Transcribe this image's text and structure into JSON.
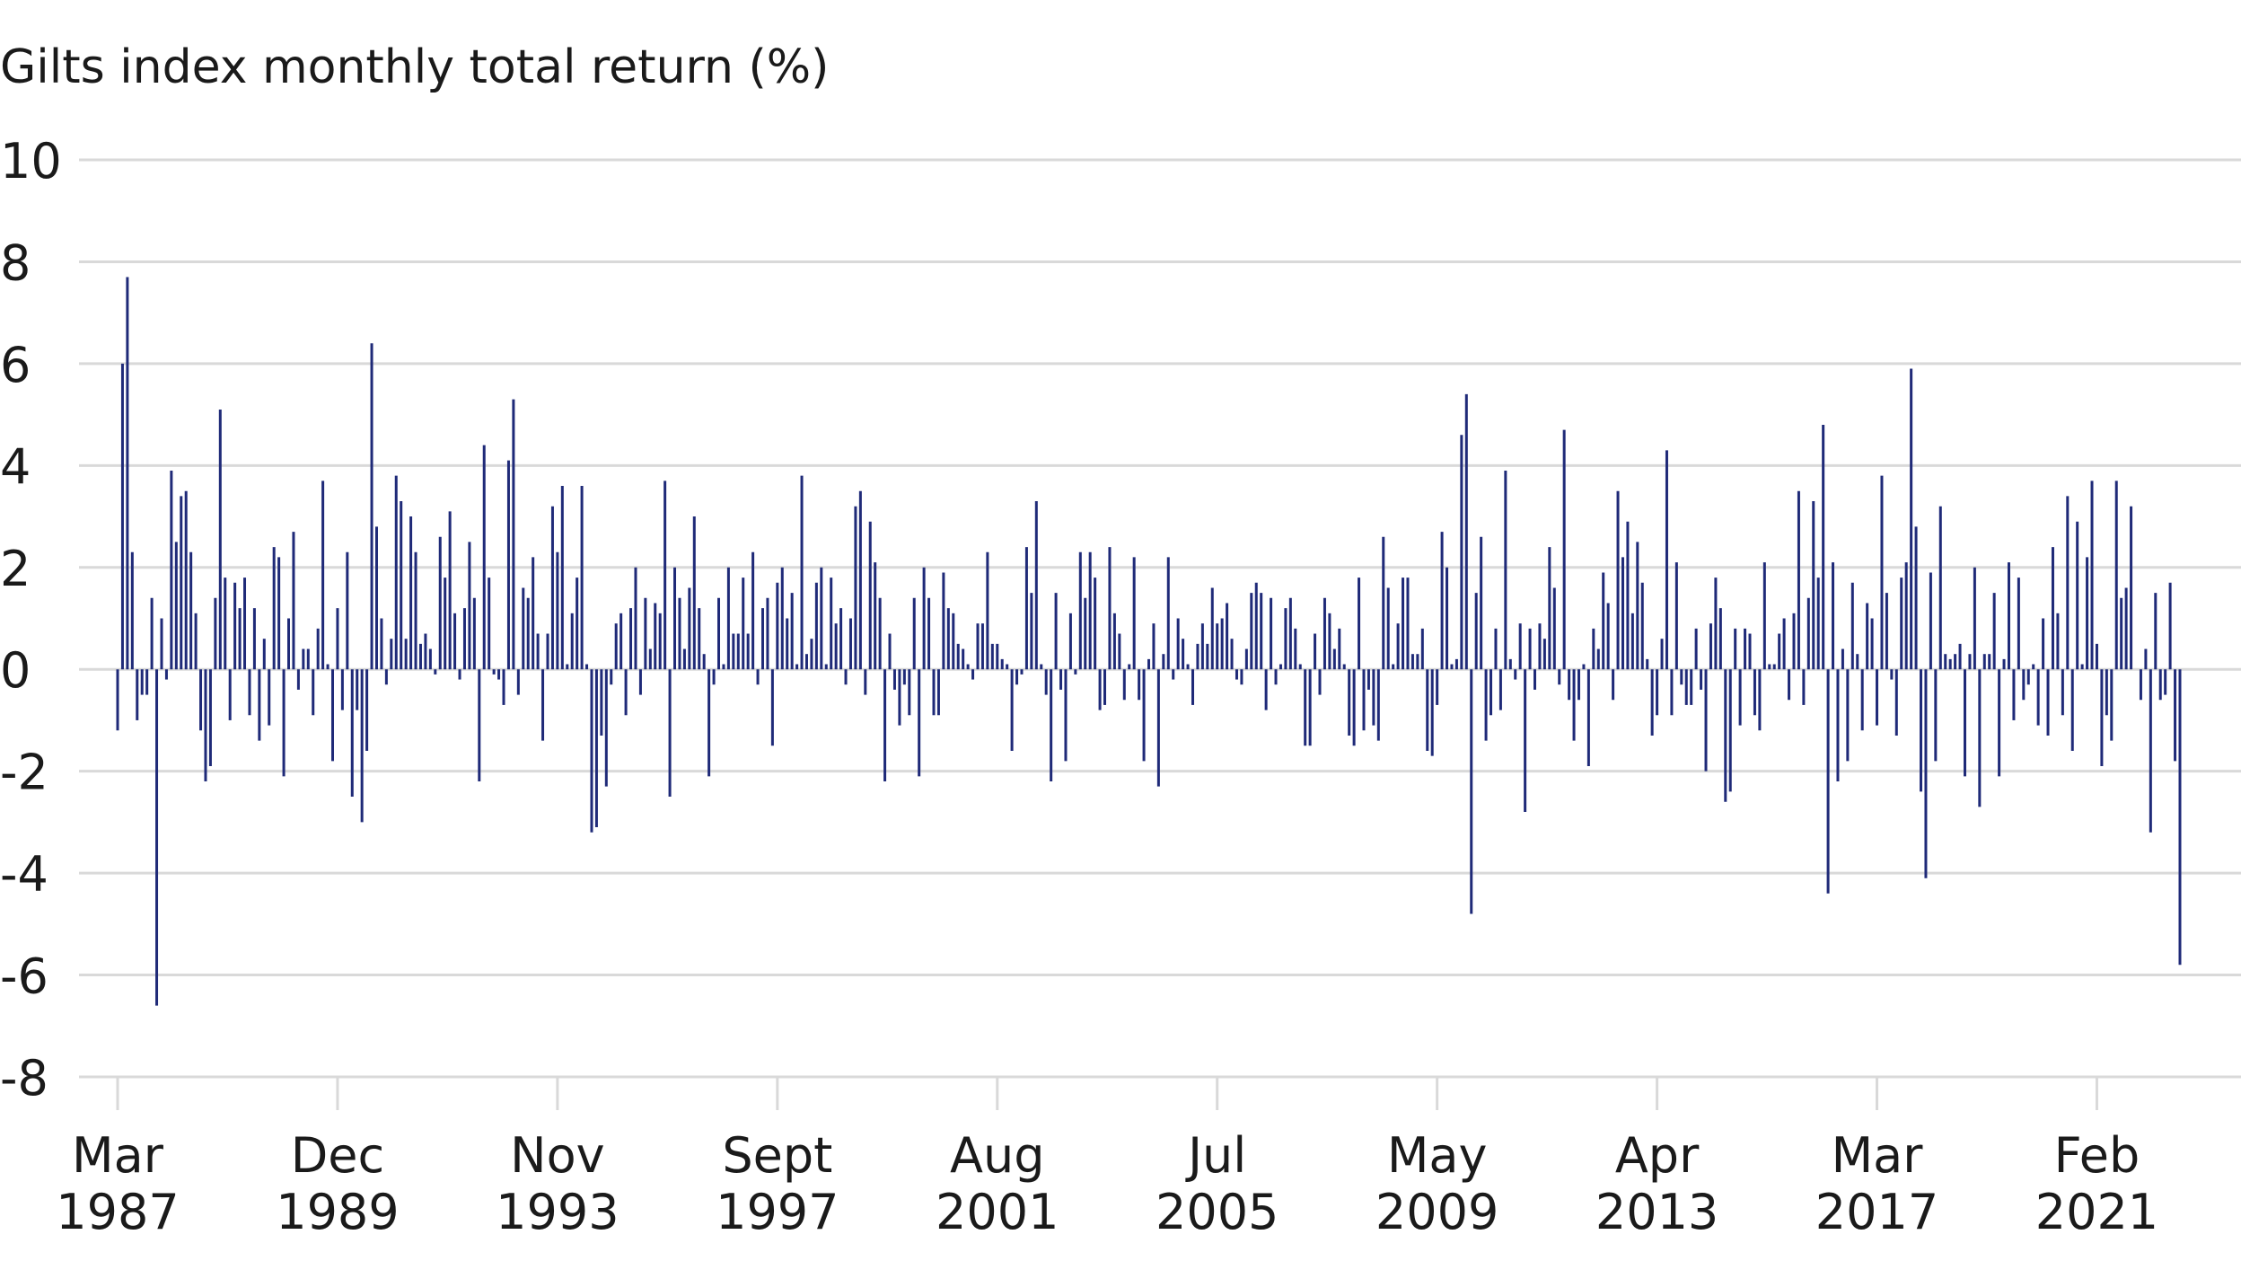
{
  "chart_data": {
    "type": "bar",
    "title": "Gilts index monthly total return (%)",
    "xlabel": "",
    "ylabel": "",
    "ylim": [
      -8,
      10
    ],
    "yticks": [
      10,
      8,
      6,
      4,
      2,
      0,
      -2,
      -4,
      -6,
      -8
    ],
    "grid": "horizontal",
    "bar_color": "#1f2a78",
    "gridline_color": "#d9d9d9",
    "x_ticks": [
      {
        "line1": "Mar",
        "line2": "1987",
        "index": 0
      },
      {
        "line1": "Dec",
        "line2": "1989",
        "index": 45
      },
      {
        "line1": "Nov",
        "line2": "1993",
        "index": 90
      },
      {
        "line1": "Sept",
        "line2": "1997",
        "index": 135
      },
      {
        "line1": "Aug",
        "line2": "2001",
        "index": 180
      },
      {
        "line1": "Jul",
        "line2": "2005",
        "index": 225
      },
      {
        "line1": "May",
        "line2": "2009",
        "index": 270
      },
      {
        "line1": "Apr",
        "line2": "2013",
        "index": 315
      },
      {
        "line1": "Mar",
        "line2": "2017",
        "index": 360
      },
      {
        "line1": "Feb",
        "line2": "2021",
        "index": 405
      }
    ],
    "values": [
      -1.2,
      6.0,
      7.7,
      2.3,
      -1.0,
      -0.5,
      -0.5,
      1.4,
      -6.6,
      1.0,
      -0.2,
      3.9,
      2.5,
      3.4,
      3.5,
      2.3,
      1.1,
      -1.2,
      -2.2,
      -1.9,
      1.4,
      5.1,
      1.8,
      -1.0,
      1.7,
      1.2,
      1.8,
      -0.9,
      1.2,
      -1.4,
      0.6,
      -1.1,
      2.4,
      2.2,
      -2.1,
      1.0,
      2.7,
      -0.4,
      0.4,
      0.4,
      -0.9,
      0.8,
      3.7,
      0.1,
      -1.8,
      1.2,
      -0.8,
      2.3,
      -2.5,
      -0.8,
      -3.0,
      -1.6,
      6.4,
      2.8,
      1.0,
      -0.3,
      0.6,
      3.8,
      3.3,
      0.6,
      3.0,
      2.3,
      0.5,
      0.7,
      0.4,
      -0.1,
      2.6,
      1.8,
      3.1,
      1.1,
      -0.2,
      1.2,
      2.5,
      1.4,
      -2.2,
      4.4,
      1.8,
      -0.1,
      -0.2,
      -0.7,
      4.1,
      5.3,
      -0.5,
      1.6,
      1.4,
      2.2,
      0.7,
      -1.4,
      0.7,
      3.2,
      2.3,
      3.6,
      0.1,
      1.1,
      1.8,
      3.6,
      0.1,
      -3.2,
      -3.1,
      -1.3,
      -2.3,
      -0.3,
      0.9,
      1.1,
      -0.9,
      1.2,
      2.0,
      -0.5,
      1.4,
      0.4,
      1.3,
      1.1,
      3.7,
      -2.5,
      2.0,
      1.4,
      0.4,
      1.6,
      3.0,
      1.2,
      0.3,
      -2.1,
      -0.3,
      1.4,
      0.1,
      2.0,
      0.7,
      0.7,
      1.8,
      0.7,
      2.3,
      -0.3,
      1.2,
      1.4,
      -1.5,
      1.7,
      2.0,
      1.0,
      1.5,
      0.1,
      3.8,
      0.3,
      0.6,
      1.7,
      2.0,
      0.1,
      1.8,
      0.9,
      1.2,
      -0.3,
      1.0,
      3.2,
      3.5,
      -0.5,
      2.9,
      2.1,
      1.4,
      -2.2,
      0.7,
      -0.4,
      -1.1,
      -0.3,
      -0.9,
      1.4,
      -2.1,
      2.0,
      1.4,
      -0.9,
      -0.9,
      1.9,
      1.2,
      1.1,
      0.5,
      0.4,
      0.1,
      -0.2,
      0.9,
      0.9,
      2.3,
      0.5,
      0.5,
      0.2,
      0.1,
      -1.6,
      -0.3,
      -0.1,
      2.4,
      1.5,
      3.3,
      0.1,
      -0.5,
      -2.2,
      1.5,
      -0.4,
      -1.8,
      1.1,
      -0.1,
      2.3,
      1.4,
      2.3,
      1.8,
      -0.8,
      -0.7,
      2.4,
      1.1,
      0.7,
      -0.6,
      0.1,
      2.2,
      -0.6,
      -1.8,
      0.2,
      0.9,
      -2.3,
      0.3,
      2.2,
      -0.2,
      1.0,
      0.6,
      0.1,
      -0.7,
      0.5,
      0.9,
      0.5,
      1.6,
      0.9,
      1.0,
      1.3,
      0.6,
      -0.2,
      -0.3,
      0.4,
      1.5,
      1.7,
      1.5,
      -0.8,
      1.4,
      -0.3,
      0.1,
      1.2,
      1.4,
      0.8,
      0.1,
      -1.5,
      -1.5,
      0.7,
      -0.5,
      1.4,
      1.1,
      0.4,
      0.8,
      0.1,
      -1.3,
      -1.5,
      1.8,
      -1.2,
      -0.4,
      -1.1,
      -1.4,
      2.6,
      1.6,
      0.1,
      0.9,
      1.8,
      1.8,
      0.3,
      0.3,
      0.8,
      -1.6,
      -1.7,
      -0.7,
      2.7,
      2.0,
      0.1,
      0.2,
      4.6,
      5.4,
      -4.8,
      1.5,
      2.6,
      -1.4,
      -0.9,
      0.8,
      -0.8,
      3.9,
      0.2,
      -0.2,
      0.9,
      -2.8,
      0.8,
      -0.4,
      0.9,
      0.6,
      2.4,
      1.6,
      -0.3,
      4.7,
      -0.6,
      -1.4,
      -0.6,
      0.1,
      -1.9,
      0.8,
      0.4,
      1.9,
      1.3,
      -0.6,
      3.5,
      2.2,
      2.9,
      1.1,
      2.5,
      1.7,
      0.2,
      -1.3,
      -0.9,
      0.6,
      4.3,
      -0.9,
      2.1,
      -0.3,
      -0.7,
      -0.7,
      0.8,
      -0.4,
      -2.0,
      0.9,
      1.8,
      1.2,
      -2.6,
      -2.4,
      0.8,
      -1.1,
      0.8,
      0.7,
      -0.9,
      -1.2,
      2.1,
      0.1,
      0.1,
      0.7,
      1.0,
      -0.6,
      1.1,
      3.5,
      -0.7,
      1.4,
      3.3,
      1.8,
      4.8,
      -4.4,
      2.1,
      -2.2,
      0.4,
      -1.8,
      1.7,
      0.3,
      -1.2,
      1.3,
      1.0,
      -1.1,
      3.8,
      1.5,
      -0.2,
      -1.3,
      1.8,
      2.1,
      5.9,
      2.8,
      -2.4,
      -4.1,
      1.9,
      -1.8,
      3.2,
      0.3,
      0.2,
      0.3,
      0.5,
      -2.1,
      0.3,
      2.0,
      -2.7,
      0.3,
      0.3,
      1.5,
      -2.1,
      0.2,
      2.1,
      -1.0,
      1.8,
      -0.6,
      -0.3,
      0.1,
      -1.1,
      1.0,
      -1.3,
      2.4,
      1.1,
      -0.9,
      3.4,
      -1.6,
      2.9,
      0.1,
      2.2,
      3.7,
      0.5,
      -1.9,
      -0.9,
      -1.4,
      3.7,
      1.4,
      1.6,
      3.2,
      0.0,
      -0.6,
      0.4,
      -3.2,
      1.5,
      -0.6,
      -0.5,
      1.7,
      -1.8,
      -5.8
    ]
  }
}
